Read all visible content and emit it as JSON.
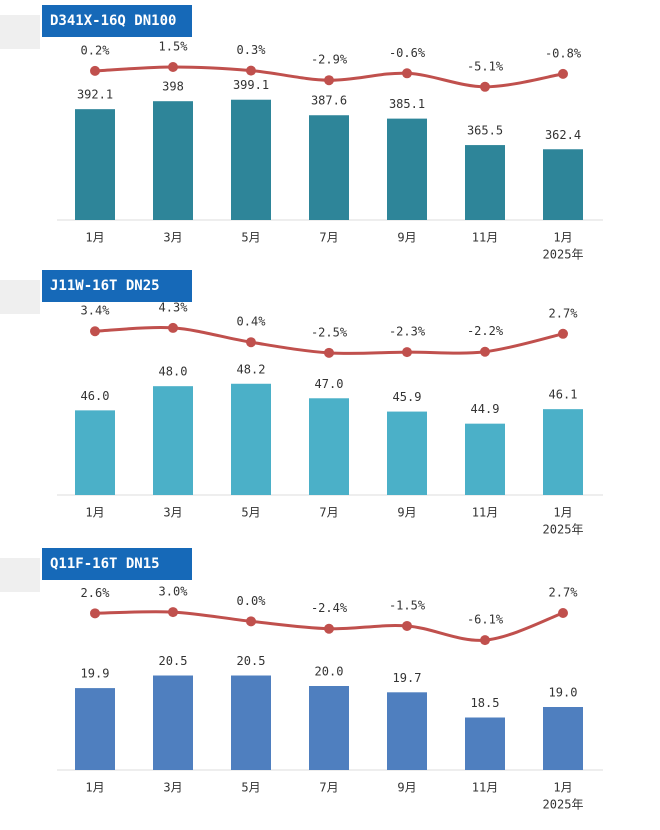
{
  "chart_data": [
    {
      "type": "bar",
      "title": "D341X-16Q DN100",
      "categories": [
        "1月",
        "3月",
        "5月",
        "7月",
        "9月",
        "11月",
        "1月"
      ],
      "year_note": "2025年",
      "ylim": [
        310,
        410
      ],
      "y2lim": [
        -10,
        5
      ],
      "series": [
        {
          "type": "bar",
          "color": "#2e8599",
          "values": [
            392.1,
            398,
            399.1,
            387.6,
            385.1,
            365.5,
            362.4
          ]
        },
        {
          "type": "line",
          "axis": "y2",
          "color": "#c0504d",
          "values": [
            0.2,
            1.5,
            0.3,
            -2.9,
            -0.6,
            -5.1,
            -0.8
          ],
          "value_labels": [
            "0.2%",
            "1.5%",
            "0.3%",
            "-2.9%",
            "-0.6%",
            "-5.1%",
            "-0.8%"
          ]
        }
      ]
    },
    {
      "type": "bar",
      "title": "J11W-16T DN25",
      "categories": [
        "1月",
        "3月",
        "5月",
        "7月",
        "9月",
        "11月",
        "1月"
      ],
      "year_note": "2025年",
      "ylim": [
        39,
        50
      ],
      "y2lim": [
        -5,
        6
      ],
      "series": [
        {
          "type": "bar",
          "color": "#4bb0c8",
          "values": [
            46.0,
            48.0,
            48.2,
            47.0,
            45.9,
            44.9,
            46.1
          ],
          "value_labels": [
            "46.0",
            "48.0",
            "48.2",
            "47.0",
            "45.9",
            "44.9",
            "46.1"
          ]
        },
        {
          "type": "line",
          "axis": "y2",
          "color": "#c0504d",
          "values": [
            3.4,
            4.3,
            0.4,
            -2.5,
            -2.3,
            -2.2,
            2.7
          ],
          "value_labels": [
            "3.4%",
            "4.3%",
            "0.4%",
            "-2.5%",
            "-2.3%",
            "-2.2%",
            "2.7%"
          ]
        }
      ]
    },
    {
      "type": "bar",
      "title": "Q11F-16T DN15",
      "categories": [
        "1月",
        "3月",
        "5月",
        "7月",
        "9月",
        "11月",
        "1月"
      ],
      "year_note": "2025年",
      "ylim": [
        16,
        22
      ],
      "y2lim": [
        -8,
        4
      ],
      "series": [
        {
          "type": "bar",
          "color": "#4f7fbf",
          "values": [
            19.9,
            20.5,
            20.5,
            20.0,
            19.7,
            18.5,
            19.0
          ],
          "value_labels": [
            "19.9",
            "20.5",
            "20.5",
            "20.0",
            "19.7",
            "18.5",
            "19.0"
          ]
        },
        {
          "type": "line",
          "axis": "y2",
          "color": "#c0504d",
          "values": [
            2.6,
            3.0,
            0.0,
            -2.4,
            -1.5,
            -6.1,
            2.7
          ],
          "value_labels": [
            "2.6%",
            "3.0%",
            "0.0%",
            "-2.4%",
            "-1.5%",
            "-6.1%",
            "2.7%"
          ]
        }
      ]
    }
  ]
}
